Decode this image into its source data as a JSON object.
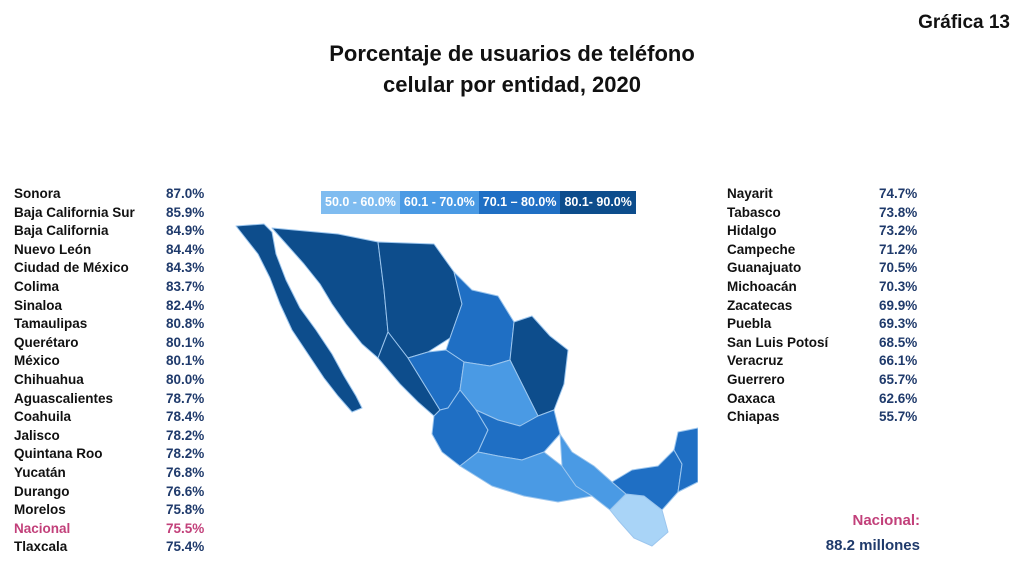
{
  "figure_label": "Gráfica 13",
  "title_line1": "Porcentaje de usuarios de teléfono",
  "title_line2": "celular por entidad, 2020",
  "legend": [
    {
      "label": "50.0 - 60.0%",
      "color": "#7fbcf0"
    },
    {
      "label": "60.1 - 70.0%",
      "color": "#4a9ae4"
    },
    {
      "label": "70.1 – 80.0%",
      "color": "#1f6fc4"
    },
    {
      "label": "80.1- 90.0%",
      "color": "#0d4d8c"
    }
  ],
  "colors": {
    "range_50_60": "#a9d4f7",
    "range_60_70": "#4a9ae4",
    "range_70_80": "#1f6fc4",
    "range_80_90": "#0d4d8c",
    "highlight": "#c2407a",
    "value_text": "#1f3a6b"
  },
  "left_list": [
    {
      "name": "Sonora",
      "value": "87.0%"
    },
    {
      "name": "Baja California Sur",
      "value": "85.9%"
    },
    {
      "name": "Baja California",
      "value": "84.9%"
    },
    {
      "name": "Nuevo León",
      "value": "84.4%"
    },
    {
      "name": "Ciudad de México",
      "value": "84.3%"
    },
    {
      "name": "Colima",
      "value": "83.7%"
    },
    {
      "name": "Sinaloa",
      "value": "82.4%"
    },
    {
      "name": "Tamaulipas",
      "value": "80.8%"
    },
    {
      "name": "Querétaro",
      "value": "80.1%"
    },
    {
      "name": "México",
      "value": "80.1%"
    },
    {
      "name": "Chihuahua",
      "value": "80.0%"
    },
    {
      "name": "Aguascalientes",
      "value": "78.7%"
    },
    {
      "name": "Coahuila",
      "value": "78.4%"
    },
    {
      "name": "Jalisco",
      "value": "78.2%"
    },
    {
      "name": "Quintana Roo",
      "value": "78.2%"
    },
    {
      "name": "Yucatán",
      "value": "76.8%"
    },
    {
      "name": "Durango",
      "value": "76.6%"
    },
    {
      "name": "Morelos",
      "value": "75.8%"
    },
    {
      "name": "Nacional",
      "value": "75.5%",
      "highlight": true
    },
    {
      "name": "Tlaxcala",
      "value": "75.4%"
    }
  ],
  "right_list": [
    {
      "name": "Nayarit",
      "value": "74.7%"
    },
    {
      "name": "Tabasco",
      "value": "73.8%"
    },
    {
      "name": "Hidalgo",
      "value": "73.2%"
    },
    {
      "name": "Campeche",
      "value": "71.2%"
    },
    {
      "name": "Guanajuato",
      "value": "70.5%"
    },
    {
      "name": "Michoacán",
      "value": "70.3%"
    },
    {
      "name": "Zacatecas",
      "value": "69.9%"
    },
    {
      "name": "Puebla",
      "value": "69.3%"
    },
    {
      "name": "San Luis Potosí",
      "value": "68.5%"
    },
    {
      "name": "Veracruz",
      "value": "66.1%"
    },
    {
      "name": "Guerrero",
      "value": "65.7%"
    },
    {
      "name": "Oaxaca",
      "value": "62.6%"
    },
    {
      "name": "Chiapas",
      "value": "55.7%"
    }
  ],
  "national": {
    "label": "Nacional:",
    "value": "88.2 millones"
  }
}
